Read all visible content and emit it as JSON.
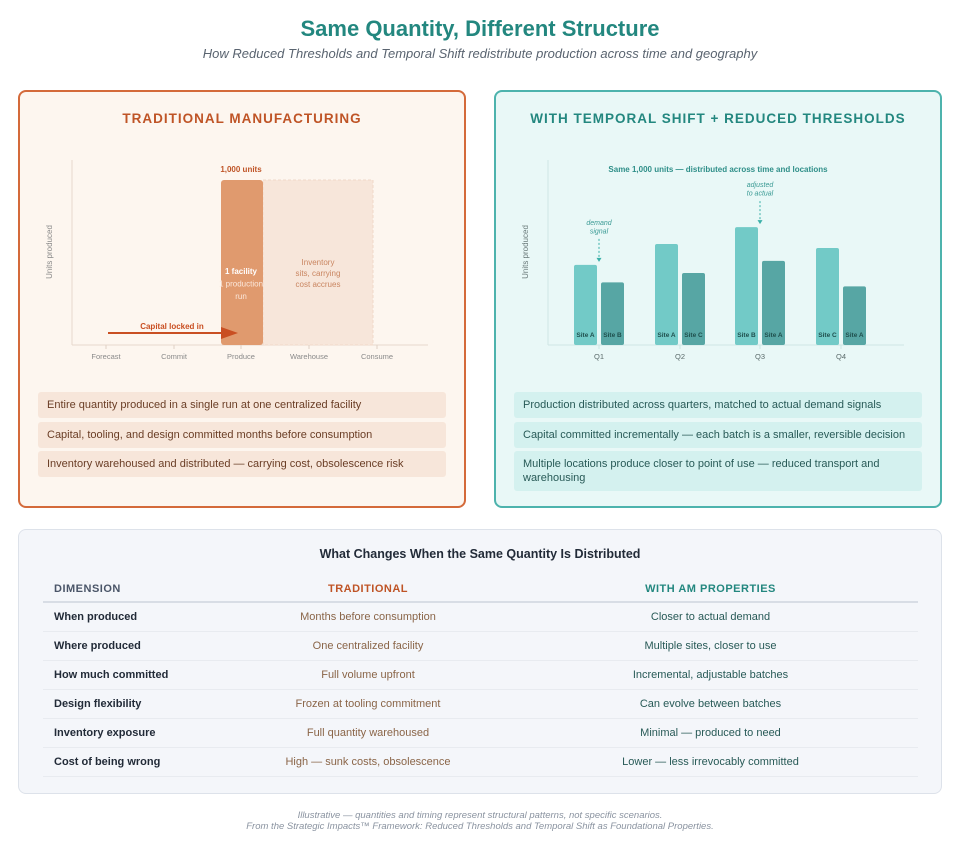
{
  "title": "Same Quantity, Different Structure",
  "subtitle": "How Reduced Thresholds and Temporal Shift redistribute production across time and geography",
  "left": {
    "title": "TRADITIONAL MANUFACTURING",
    "bullets": [
      "Entire quantity produced in a single run at one centralized facility",
      "Capital, tooling, and design committed months before consumption",
      "Inventory warehoused and distributed — carrying cost, obsolescence risk"
    ]
  },
  "right": {
    "title": "WITH TEMPORAL SHIFT + REDUCED THRESHOLDS",
    "bullets": [
      "Production distributed across quarters, matched to actual demand signals",
      "Capital committed incrementally — each batch is a smaller, reversible decision",
      "Multiple locations produce closer to point of use — reduced transport and warehousing"
    ]
  },
  "chart_data": [
    {
      "type": "bar",
      "title": "",
      "ylabel": "Units produced",
      "categories": [
        "Forecast",
        "Commit",
        "Produce",
        "Warehouse",
        "Consume"
      ],
      "bar": {
        "category": "Produce",
        "value": 1000,
        "label": "1,000 units",
        "inner_label": [
          "1 facility",
          "1 production",
          "run"
        ]
      },
      "inventory_region": {
        "from": "Produce",
        "to": "Consume",
        "label": [
          "Inventory",
          "sits, carrying",
          "cost accrues"
        ]
      },
      "arrow": {
        "from": "Forecast",
        "to": "Produce",
        "label": "Capital locked in"
      },
      "ylim": [
        0,
        1000
      ],
      "colors": {
        "bar": "#e09a6e",
        "inventory": "#f7e6da",
        "arrow": "#c94f22"
      }
    },
    {
      "type": "bar",
      "title": "Same 1,000 units — distributed across time and locations",
      "ylabel": "Units produced",
      "categories": [
        "Q1",
        "Q2",
        "Q3",
        "Q4"
      ],
      "groups": [
        {
          "q": "Q1",
          "bars": [
            {
              "site": "Site A",
              "value": 119
            },
            {
              "site": "Site B",
              "value": 93
            }
          ]
        },
        {
          "q": "Q2",
          "bars": [
            {
              "site": "Site A",
              "value": 150
            },
            {
              "site": "Site C",
              "value": 107
            }
          ]
        },
        {
          "q": "Q3",
          "bars": [
            {
              "site": "Site B",
              "value": 175
            },
            {
              "site": "Site A",
              "value": 125
            }
          ]
        },
        {
          "q": "Q4",
          "bars": [
            {
              "site": "Site C",
              "value": 144
            },
            {
              "site": "Site A",
              "value": 87
            }
          ]
        }
      ],
      "annotations": [
        {
          "category": "Q1",
          "text": [
            "demand",
            "signal"
          ]
        },
        {
          "category": "Q3",
          "text": [
            "adjusted",
            "to actual"
          ]
        }
      ],
      "ylim": [
        0,
        245
      ],
      "colors": {
        "primary": "#72cac7",
        "secondary": "#57a6a4"
      }
    }
  ],
  "table": {
    "title": "What Changes When the Same Quantity Is Distributed",
    "headers": [
      "DIMENSION",
      "TRADITIONAL",
      "WITH AM PROPERTIES"
    ],
    "rows": [
      [
        "When produced",
        "Months before consumption",
        "Closer to actual demand"
      ],
      [
        "Where produced",
        "One centralized facility",
        "Multiple sites, closer to use"
      ],
      [
        "How much committed",
        "Full volume upfront",
        "Incremental, adjustable batches"
      ],
      [
        "Design flexibility",
        "Frozen at tooling commitment",
        "Can evolve between batches"
      ],
      [
        "Inventory exposure",
        "Full quantity warehoused",
        "Minimal — produced to need"
      ],
      [
        "Cost of being wrong",
        "High — sunk costs, obsolescence",
        "Lower — less irrevocably committed"
      ]
    ]
  },
  "footer": [
    "Illustrative — quantities and timing represent structural patterns, not specific scenarios.",
    "From the Strategic Impacts™ Framework: Reduced Thresholds and Temporal Shift as Foundational Properties."
  ]
}
